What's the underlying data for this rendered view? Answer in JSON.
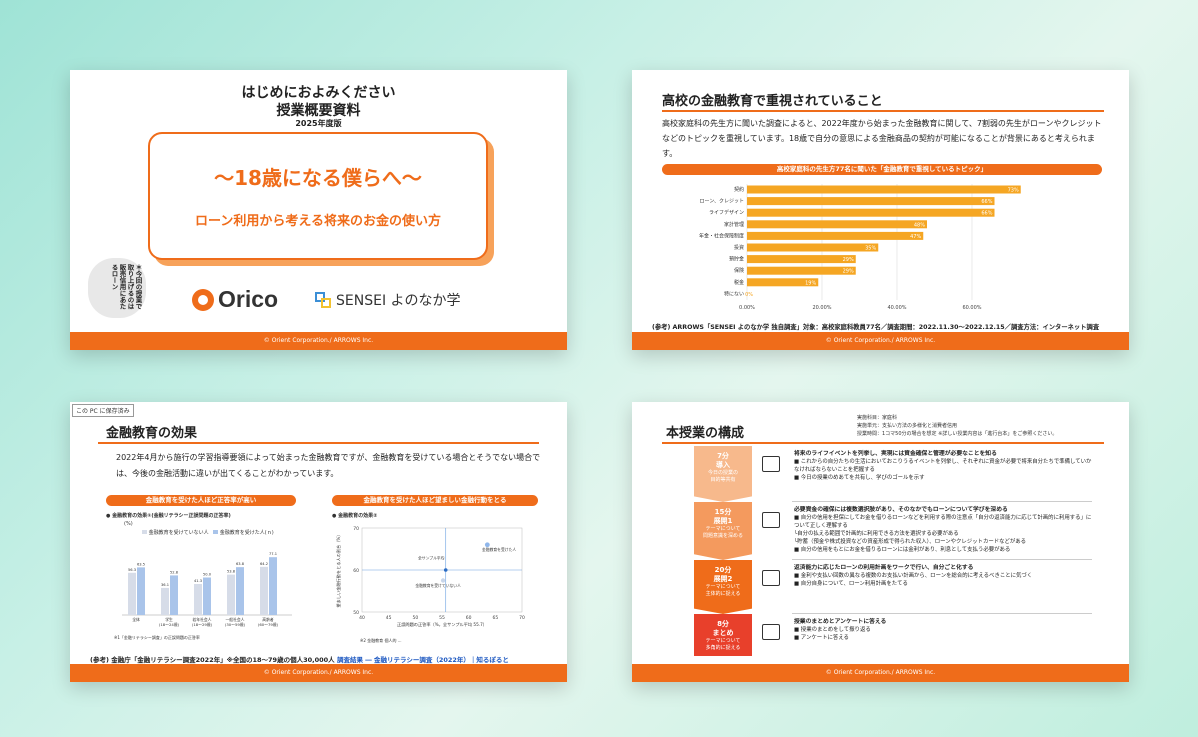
{
  "slide1": {
    "title1": "はじめにおよみください",
    "title2": "授業概要資料",
    "title3": "2025年度版",
    "subtitle": "〜18歳になる僕らへ〜",
    "subtitle2": "ローン利用から考える将来のお金の使い方",
    "bubble": "＊今回の授業で取り上げるのは販売信用にあたるローン",
    "orico": "Orico",
    "sensei": "SENSEI よのなか学",
    "footer": "© Orient Corporation./ ARROWS Inc."
  },
  "slide2": {
    "heading": "高校の金融教育で重視されていること",
    "body": "高校家庭科の先生方に聞いた調査によると、2022年度から始まった金融教育に関して、7割弱の先生がローンやクレジットなどのトピックを重視しています。18歳で自分の意思による金融商品の契約が可能になることが背景にあると考えられます。",
    "band": "高校家庭科の先生方77名に聞いた「金融教育で重視しているトピック」",
    "source": "(参考) ARROWS「SENSEI よのなか学 独自調査」対象：高校家庭科教員77名／調査期間：2022.11.30〜2022.12.15／調査方法：インターネット調査",
    "footer": "© Orient Corporation./ ARROWS Inc."
  },
  "chart_data": {
    "type": "bar",
    "orientation": "horizontal",
    "categories": [
      "契約",
      "ローン、クレジット",
      "ライフデザイン",
      "家計管理",
      "年金・社会保障制度",
      "投資",
      "預貯金",
      "保険",
      "税金",
      "特にない"
    ],
    "values": [
      73,
      66,
      66,
      48,
      47,
      35,
      29,
      29,
      19,
      0
    ],
    "value_labels": [
      "73%",
      "66%",
      "66%",
      "48%",
      "47%",
      "35%",
      "29%",
      "29%",
      "19%",
      "0%"
    ],
    "x_ticks": [
      "0.00%",
      "20.00%",
      "40.00%",
      "60.00%"
    ],
    "xlim": [
      0,
      80
    ],
    "color": "#f5a623"
  },
  "slide3": {
    "saved": "この PC に保存済み",
    "heading": "金融教育の効果",
    "body": "2022年4月から施行の学習指導要領によって始まった金融教育ですが、金融教育を受けている場合とそうでない場合では、今後の金融活動に違いが出てくることがわかっています。",
    "band1": "金融教育を受けた人ほど正答率が高い",
    "band2": "金融教育を受けた人ほど望ましい金融行動をとる",
    "chart1_title": "● 金融教育の効果①(金融リテラシー正誤問題の正答率)",
    "chart1_unit": "(%)",
    "chart1_legend_a": "金融教育を受けていない人",
    "chart1_legend_b": "金融教育を受けた人(ｎ)",
    "chart1_groups": [
      "全体",
      "学生\n(18〜24歳)",
      "若年社会人\n(18〜29歳)",
      "一般社会人\n(30〜59歳)",
      "高齢者\n(60〜79歳)"
    ],
    "chart1_a": [
      56.3,
      36.1,
      41.3,
      53.8,
      64.2
    ],
    "chart1_b": [
      63.5,
      52.8,
      50.0,
      63.8,
      77.1
    ],
    "chart2_title": "● 金融教育の効果②",
    "chart2_xlabel": "正誤問題の正答率（%，全サンプル平均 55.7）",
    "chart2_ylabel": "望ましい金融行動をとる人の割合（%）",
    "chart2_points": [
      "全サンプル平均",
      "金融教育を受けた人",
      "金融教育を受けていない人"
    ],
    "chart2_x_ticks": [
      "40",
      "45",
      "50",
      "55",
      "60",
      "65",
      "70"
    ],
    "chart2_y_ticks": [
      "50",
      "60",
      "70"
    ],
    "chart1_note": "※1「金融リテラシー調査」の正誤問題の正答率",
    "chart2_note": "※2 金融教育 個人的 ...",
    "source": "(参考) 金融庁「金融リテラシー調査2022年」※全国の18〜79歳の個人30,000人",
    "link": "調査結果 ― 金融リテラシー調査（2022年）｜知るぽると (shiruporuto.jp)",
    "footer": "© Orient Corporation./ ARROWS Inc."
  },
  "slide4": {
    "heading": "本授業の構成",
    "notes": [
      "実施科目：家庭科",
      "実施単元：支払い方法の多様化と消費者信用",
      "授業時間：1コマ50分の場合を想定 ※詳しい授業内容は「進行台本」をご参照ください。"
    ],
    "steps": [
      {
        "time": "7分",
        "name": "導入",
        "desc": "今日の授業の\n目的等共有",
        "color": "#f7b98c",
        "head": "将来のライフイベントを列挙し、実現には資金確保と管理が必要なことを知る",
        "lines": [
          "■ これからの自分たちの生活においておこりうるイベントを列挙し、それぞれに資金が必要で将来自分たちで準備していかなければならないことを把握する",
          "■ 今日の授業のめあてを共有し、学びのゴールを示す"
        ]
      },
      {
        "time": "15分",
        "name": "展開1",
        "desc": "テーマについて\n問題意識を深める",
        "color": "#f49a5e",
        "head": "必要資金の確保には複数選択肢があり、そのなかでもローンについて学びを深める",
        "lines": [
          "■ 自分の信用を担保にしてお金を借りるローンなどを利用する際の注意点「自分の返済能力に応じて計画的に利用する」について正しく理解する",
          "└自分の払える範囲で計画的に利用できる方法を選択する必要がある",
          "└貯蓄（預金や株式投資などの資産形成で得られた収入）、ローンやクレジットカードなどがある",
          "■ 自分の信用をもとにお金を借りるローンには金利があり、利息として支払う必要がある"
        ]
      },
      {
        "time": "20分",
        "name": "展開2",
        "desc": "テーマについて\n主体的に捉える",
        "color": "#ef6c1a",
        "head": "返済能力に応じたローンの利用計画をワークで行い、自分ごと化する",
        "lines": [
          "■ 金利や支払い回数の異なる複数のお支払い計画から、ローンを総合的に考えるべきことに気づく",
          "■ 自分自身について、ローン利用計画をたてる"
        ]
      },
      {
        "time": "8分",
        "name": "まとめ",
        "desc": "テーマについて\n多角的に捉える",
        "color": "#e8402b",
        "head": "授業のまとめとアンケートに答える",
        "lines": [
          "■ 授業のまとめをして振り返る",
          "■ アンケートに答える"
        ]
      }
    ],
    "footer": "© Orient Corporation./ ARROWS Inc."
  }
}
